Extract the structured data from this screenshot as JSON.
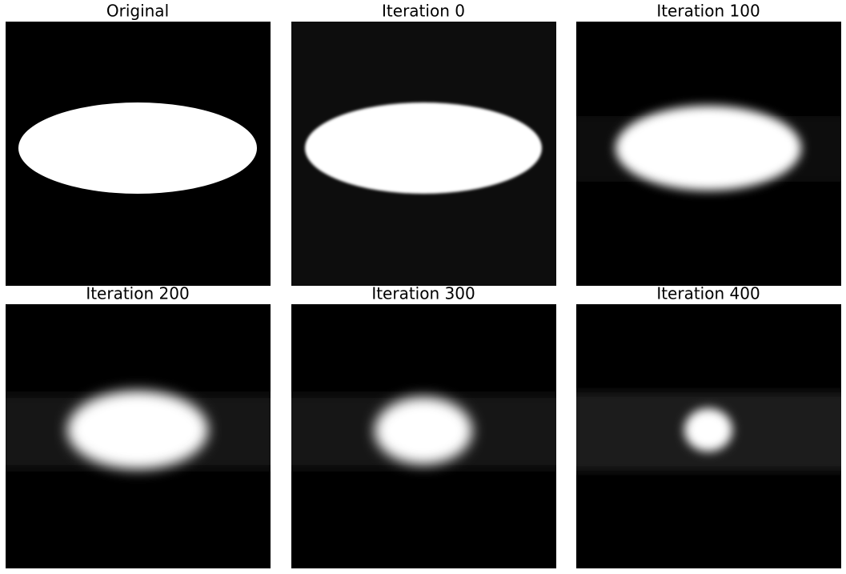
{
  "panels": [
    {
      "title": "Original"
    },
    {
      "title": "Iteration 0"
    },
    {
      "title": "Iteration 100"
    },
    {
      "title": "Iteration 200"
    },
    {
      "title": "Iteration 300"
    },
    {
      "title": "Iteration 400"
    }
  ]
}
